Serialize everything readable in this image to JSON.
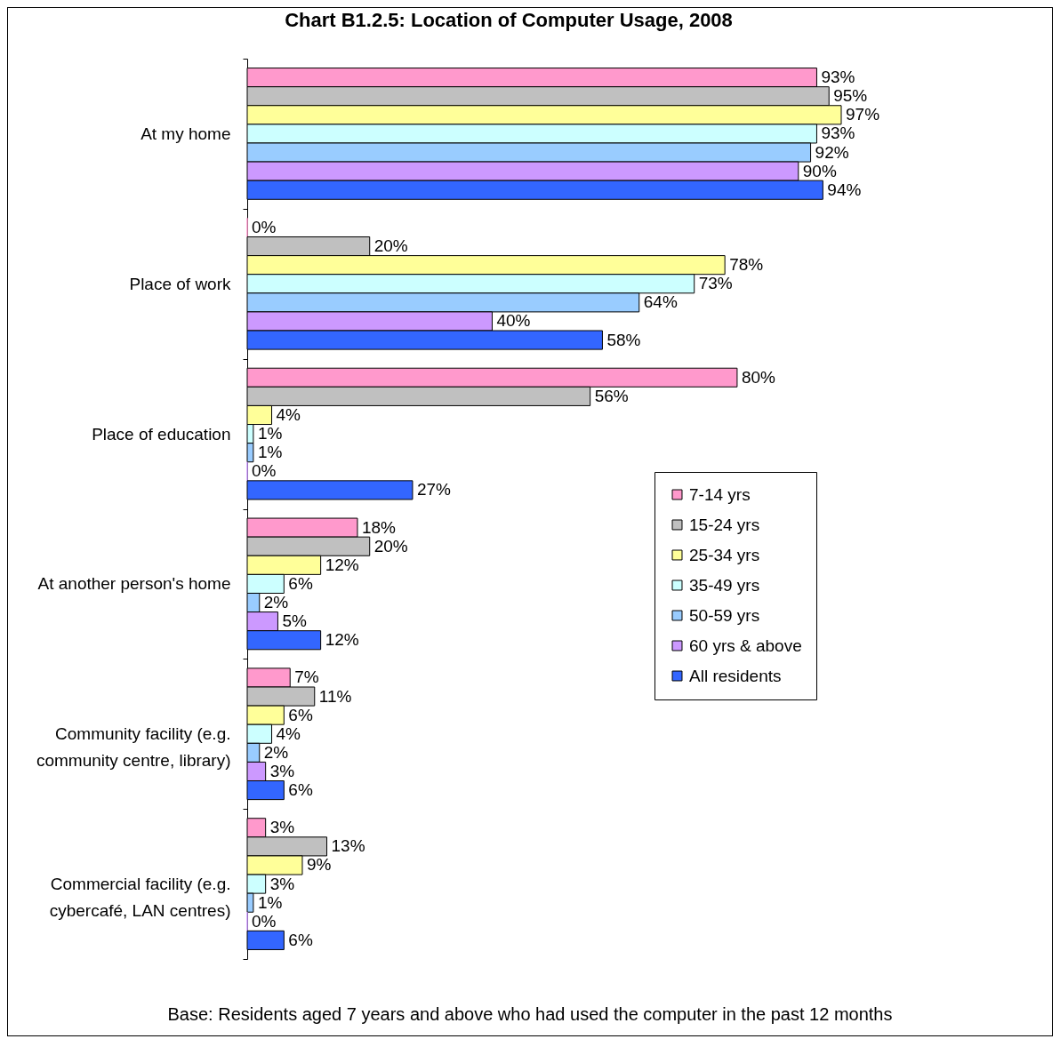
{
  "chart_data": {
    "type": "bar",
    "orientation": "horizontal",
    "title": "Chart B1.2.5:  Location of Computer Usage, 2008",
    "annotations": [
      "Base: Residents aged 7 years and above who had used the computer in the past 12 months"
    ],
    "categories": [
      "At my home",
      "Place of work",
      "Place of education",
      "At another person's home",
      "Community facility (e.g. community centre, library)",
      "Commercial facility (e.g. cybercafé, LAN centres)"
    ],
    "series": [
      {
        "name": "7-14 yrs",
        "color": "#ff99cc",
        "values": [
          93,
          0,
          80,
          18,
          7,
          3
        ],
        "value_labels": [
          "93%",
          "0%",
          "80%",
          "18%",
          "7%",
          "3%"
        ]
      },
      {
        "name": "15-24 yrs",
        "color": "#c0c0c0",
        "values": [
          95,
          20,
          56,
          20,
          11,
          13
        ],
        "value_labels": [
          "95%",
          "20%",
          "56%",
          "20%",
          "11%",
          "13%"
        ]
      },
      {
        "name": "25-34 yrs",
        "color": "#ffff99",
        "values": [
          97,
          78,
          4,
          12,
          6,
          9
        ],
        "value_labels": [
          "97%",
          "78%",
          "4%",
          "12%",
          "6%",
          "9%"
        ]
      },
      {
        "name": "35-49 yrs",
        "color": "#ccffff",
        "values": [
          93,
          73,
          1,
          6,
          4,
          3
        ],
        "value_labels": [
          "93%",
          "73%",
          "1%",
          "6%",
          "4%",
          "3%"
        ]
      },
      {
        "name": "50-59 yrs",
        "color": "#99ccff",
        "values": [
          92,
          64,
          1,
          2,
          2,
          1
        ],
        "value_labels": [
          "92%",
          "64%",
          "1%",
          "2%",
          "2%",
          "1%"
        ]
      },
      {
        "name": "60 yrs & above",
        "color": "#cc99ff",
        "values": [
          90,
          40,
          0,
          5,
          3,
          0
        ],
        "value_labels": [
          "90%",
          "40%",
          "0%",
          "5%",
          "3%",
          "0%"
        ]
      },
      {
        "name": "All residents",
        "color": "#3366ff",
        "values": [
          94,
          58,
          27,
          12,
          6,
          6
        ],
        "value_labels": [
          "94%",
          "58%",
          "27%",
          "12%",
          "6%",
          "6%"
        ]
      }
    ],
    "legend": "right"
  }
}
